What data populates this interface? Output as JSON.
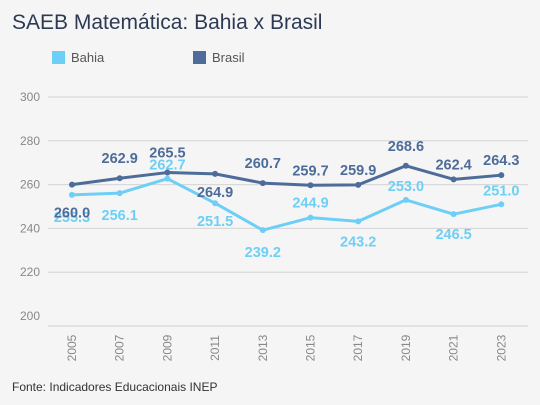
{
  "chart_data": {
    "type": "line",
    "title": "SAEB Matemática: Bahia x Brasil",
    "xlabel": "",
    "ylabel": "",
    "categories": [
      "2005",
      "2007",
      "2009",
      "2011",
      "2013",
      "2015",
      "2017",
      "2019",
      "2021",
      "2023"
    ],
    "ylim": [
      200,
      300
    ],
    "yticks": [
      "200",
      "220",
      "240",
      "260",
      "280",
      "300"
    ],
    "grid": true,
    "legend_position": "top-left",
    "series": [
      {
        "name": "Bahia",
        "color": "#6ecff6",
        "values": [
          255.3,
          256.1,
          262.7,
          251.5,
          239.2,
          244.9,
          243.2,
          253.0,
          246.5,
          251.0
        ],
        "labels": [
          "255.3",
          "256.1",
          "262.7",
          "251.5",
          "239.2",
          "244.9",
          "243.2",
          "253.0",
          "246.5",
          "251.0"
        ]
      },
      {
        "name": "Brasil",
        "color": "#4e6c99",
        "values": [
          260.0,
          262.9,
          265.5,
          264.9,
          260.7,
          259.7,
          259.9,
          268.6,
          262.4,
          264.3
        ],
        "labels": [
          "260.0",
          "262.9",
          "265.5",
          "264.9",
          "260.7",
          "259.7",
          "259.9",
          "268.6",
          "262.4",
          "264.3"
        ]
      }
    ]
  },
  "source": "Fonte: Indicadores Educacionais INEP"
}
